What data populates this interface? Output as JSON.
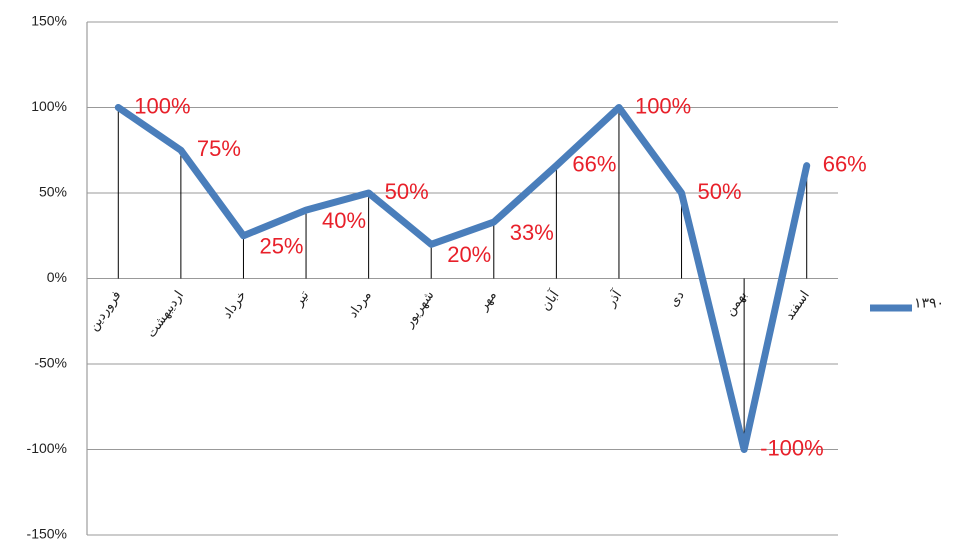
{
  "chart_data": {
    "type": "line",
    "categories": [
      "فروردین",
      "اردیبهشت",
      "خرداد",
      "تیر",
      "مرداد",
      "شهریور",
      "مهر",
      "آبان",
      "آذر",
      "دی",
      "بهمن",
      "اسفند"
    ],
    "series": [
      {
        "name": "۱۳۹۰",
        "color": "#4a7ebb",
        "values": [
          100,
          75,
          25,
          40,
          50,
          20,
          33,
          66,
          100,
          50,
          -100,
          66
        ],
        "value_labels": [
          "100%",
          "75%",
          "25%",
          "40%",
          "50%",
          "20%",
          "33%",
          "66%",
          "100%",
          "50%",
          "-100%",
          "66%"
        ]
      }
    ],
    "ylim": [
      -150,
      150
    ],
    "yticks": [
      {
        "value": -150,
        "label": "-150%"
      },
      {
        "value": -100,
        "label": "-100%"
      },
      {
        "value": -50,
        "label": "-50%"
      },
      {
        "value": 0,
        "label": "0%"
      },
      {
        "value": 50,
        "label": "50%"
      },
      {
        "value": 100,
        "label": "100%"
      },
      {
        "value": 150,
        "label": "150%"
      }
    ],
    "grid": true,
    "legend": "right",
    "label_color": "#e8202a"
  }
}
